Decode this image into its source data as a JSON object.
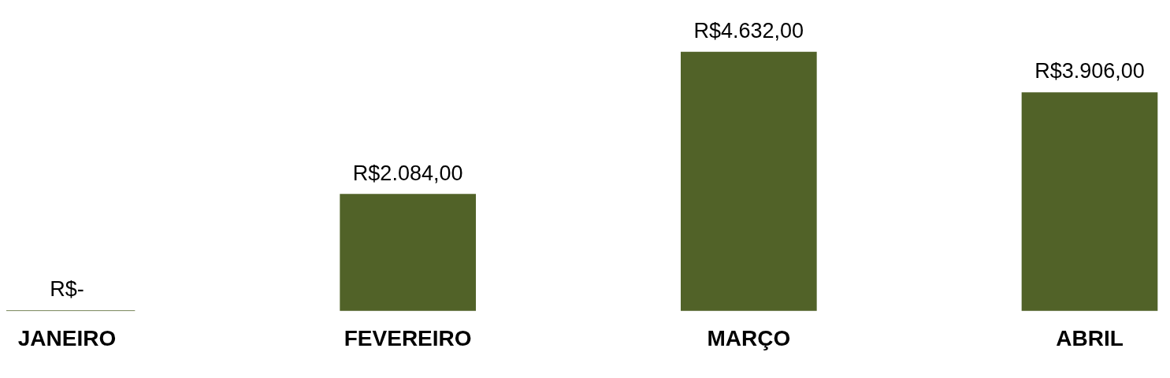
{
  "chart_data": {
    "type": "bar",
    "categories": [
      "JANEIRO",
      "FEVEREIRO",
      "MARÇO",
      "ABRIL"
    ],
    "values": [
      0,
      2084,
      4632,
      3906
    ],
    "color": "#516228",
    "value_labels": [
      "R$-",
      "R$2.084,00",
      "R$4.632,00",
      "R$3.906,00"
    ],
    "legend": false,
    "grid": false
  }
}
